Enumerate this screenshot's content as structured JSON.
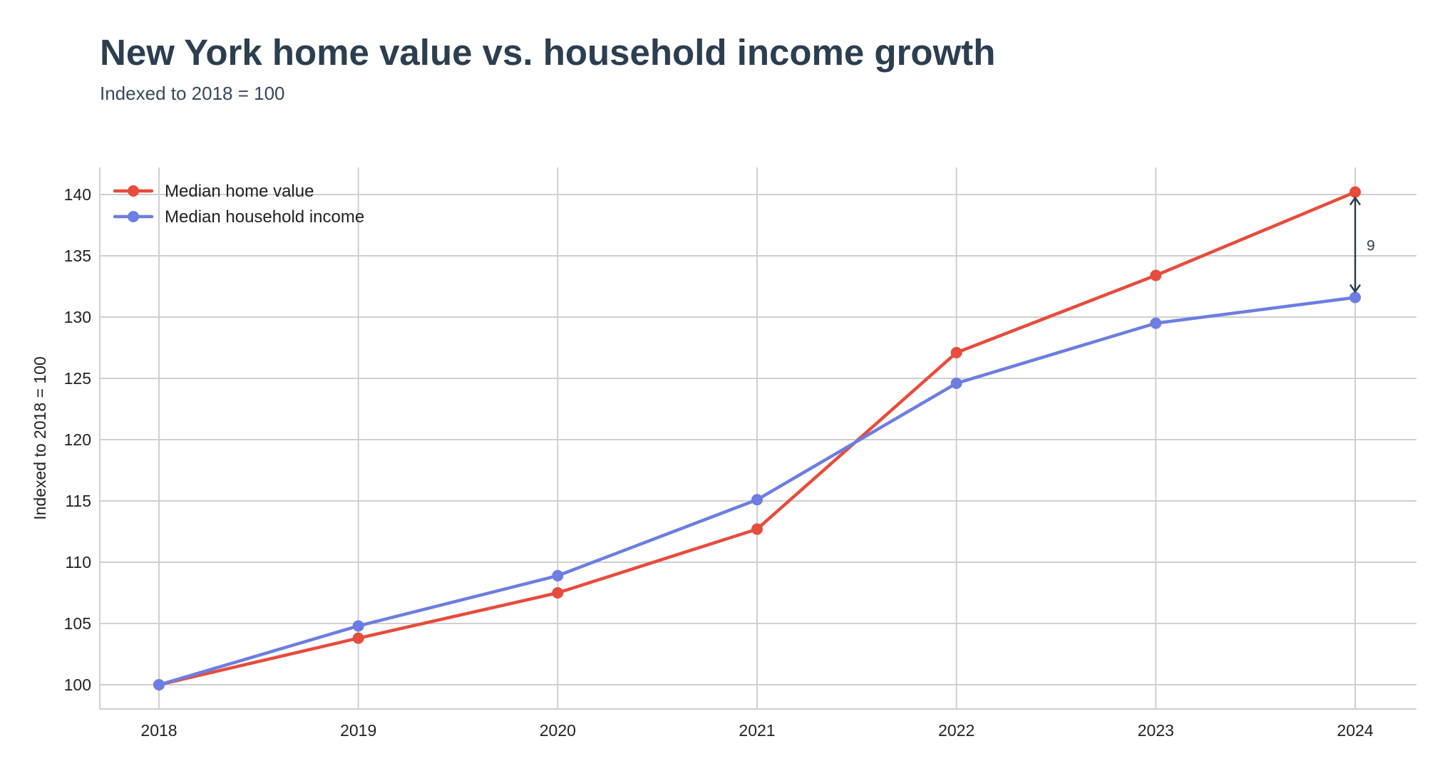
{
  "chart_data": {
    "type": "line",
    "title": "New York home value vs. household income growth",
    "subtitle": "Indexed to 2018 = 100",
    "xlabel": "",
    "ylabel": "Indexed to 2018 = 100",
    "categories": [
      "2018",
      "2019",
      "2020",
      "2021",
      "2022",
      "2023",
      "2024"
    ],
    "ylim": [
      98,
      142
    ],
    "yticks": [
      100,
      105,
      110,
      115,
      120,
      125,
      130,
      135,
      140
    ],
    "grid": true,
    "legend_position": "top-left",
    "series": [
      {
        "name": "Median home value",
        "color": "#e74c3c",
        "values": [
          100,
          103.8,
          107.5,
          112.7,
          127.1,
          133.4,
          140.2
        ]
      },
      {
        "name": "Median household income",
        "color": "#6c7ee1",
        "values": [
          100,
          104.8,
          108.9,
          115.1,
          124.6,
          129.5,
          131.6
        ]
      }
    ],
    "annotations": [
      {
        "type": "gap-arrow",
        "x": "2024",
        "from": 140.2,
        "to": 131.6,
        "label": "9",
        "color": "#2c3e50"
      }
    ]
  }
}
